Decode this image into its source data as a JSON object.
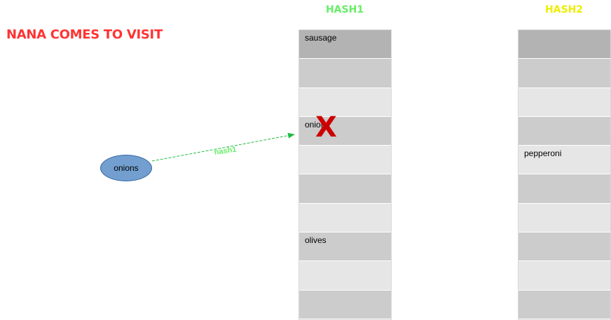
{
  "title": "NANA COMES TO VISIT",
  "hash1": {
    "header": "HASH1",
    "slots": [
      "sausage",
      "",
      "",
      "onions",
      "",
      "",
      "",
      "olives",
      "",
      ""
    ]
  },
  "hash2": {
    "header": "HASH2",
    "slots": [
      "",
      "",
      "",
      "",
      "pepperoni",
      "",
      "",
      "",
      "",
      ""
    ]
  },
  "node": {
    "label": "onions"
  },
  "arrow": {
    "label": "hash1",
    "color": "#22bb44"
  },
  "mark": {
    "symbol": "X",
    "color": "#cc0000"
  }
}
